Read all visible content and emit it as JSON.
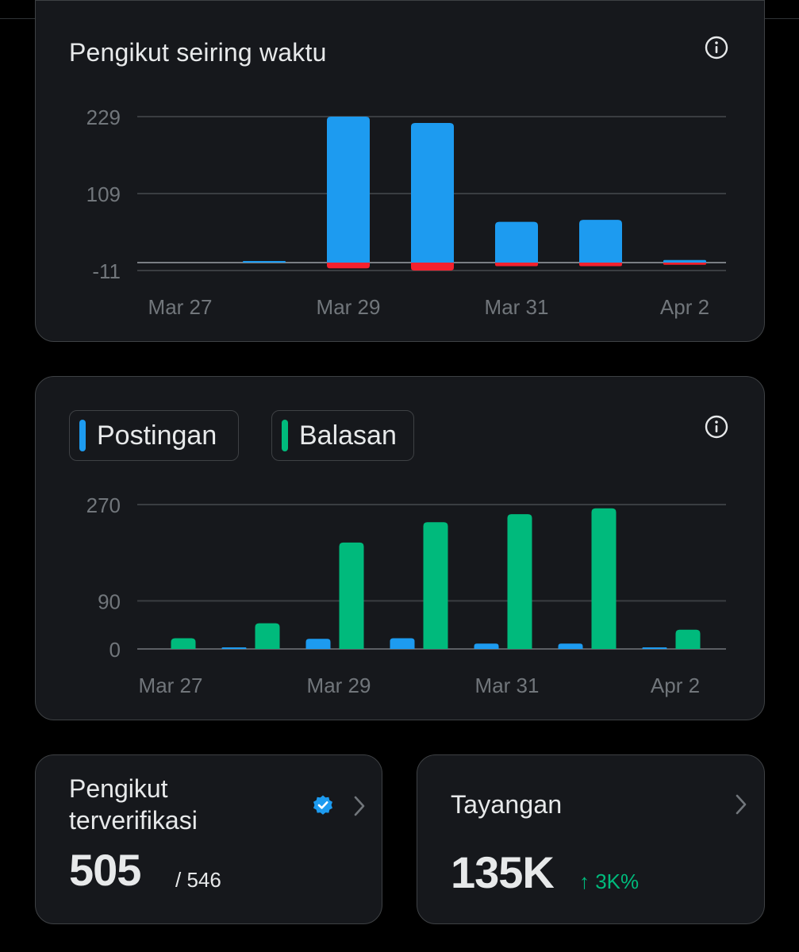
{
  "colors": {
    "background": "#000000",
    "card": "#16181c",
    "border": "#3e4144",
    "text": "#e7e9ea",
    "muted": "#71767b",
    "blue": "#1d9bf0",
    "green": "#00ba7c",
    "red": "#f4212e"
  },
  "followers_card": {
    "title": "Pengikut seiring waktu",
    "info_icon": "info-icon"
  },
  "posts_card": {
    "info_icon": "info-icon",
    "legend": [
      {
        "label": "Postingan",
        "color": "#1d9bf0"
      },
      {
        "label": "Balasan",
        "color": "#00ba7c"
      }
    ]
  },
  "verified_card": {
    "title_line1": "Pengikut",
    "title_line2": "terverifikasi",
    "value": "505",
    "total": "/ 546",
    "badge_icon": "verified-badge-icon",
    "chevron_icon": "chevron-right-icon"
  },
  "views_card": {
    "title": "Tayangan",
    "value": "135K",
    "delta": "↑ 3K%",
    "chevron_icon": "chevron-right-icon"
  },
  "chart_data": [
    {
      "type": "bar",
      "title": "Pengikut seiring waktu",
      "x_tick_labels": [
        "Mar 27",
        "Mar 29",
        "Mar 31",
        "Apr 2"
      ],
      "categories": [
        "Mar 27",
        "Mar 28",
        "Mar 29",
        "Mar 30",
        "Mar 31",
        "Apr 1",
        "Apr 2"
      ],
      "series": [
        {
          "color": "#1d9bf0",
          "values": [
            0,
            1,
            229,
            219,
            64,
            67,
            4
          ]
        },
        {
          "color": "#f4212e",
          "values": [
            0,
            0,
            -8,
            -11,
            -5,
            -5,
            -3
          ]
        }
      ],
      "y_ticks": [
        -11,
        109,
        229
      ],
      "ylim": [
        -11,
        229
      ],
      "grid": true
    },
    {
      "type": "bar",
      "x_tick_labels": [
        "Mar 27",
        "Mar 29",
        "Mar 31",
        "Apr 2"
      ],
      "categories": [
        "Mar 27",
        "Mar 28",
        "Mar 29",
        "Mar 30",
        "Mar 31",
        "Apr 1",
        "Apr 2"
      ],
      "series": [
        {
          "name": "Postingan",
          "color": "#1d9bf0",
          "values": [
            0,
            2,
            19,
            20,
            10,
            10,
            2
          ]
        },
        {
          "name": "Balasan",
          "color": "#00ba7c",
          "values": [
            20,
            48,
            199,
            237,
            252,
            263,
            36
          ]
        }
      ],
      "y_ticks": [
        0,
        90,
        270
      ],
      "ylim": [
        0,
        270
      ],
      "grid": true,
      "legend": "top-left"
    }
  ]
}
